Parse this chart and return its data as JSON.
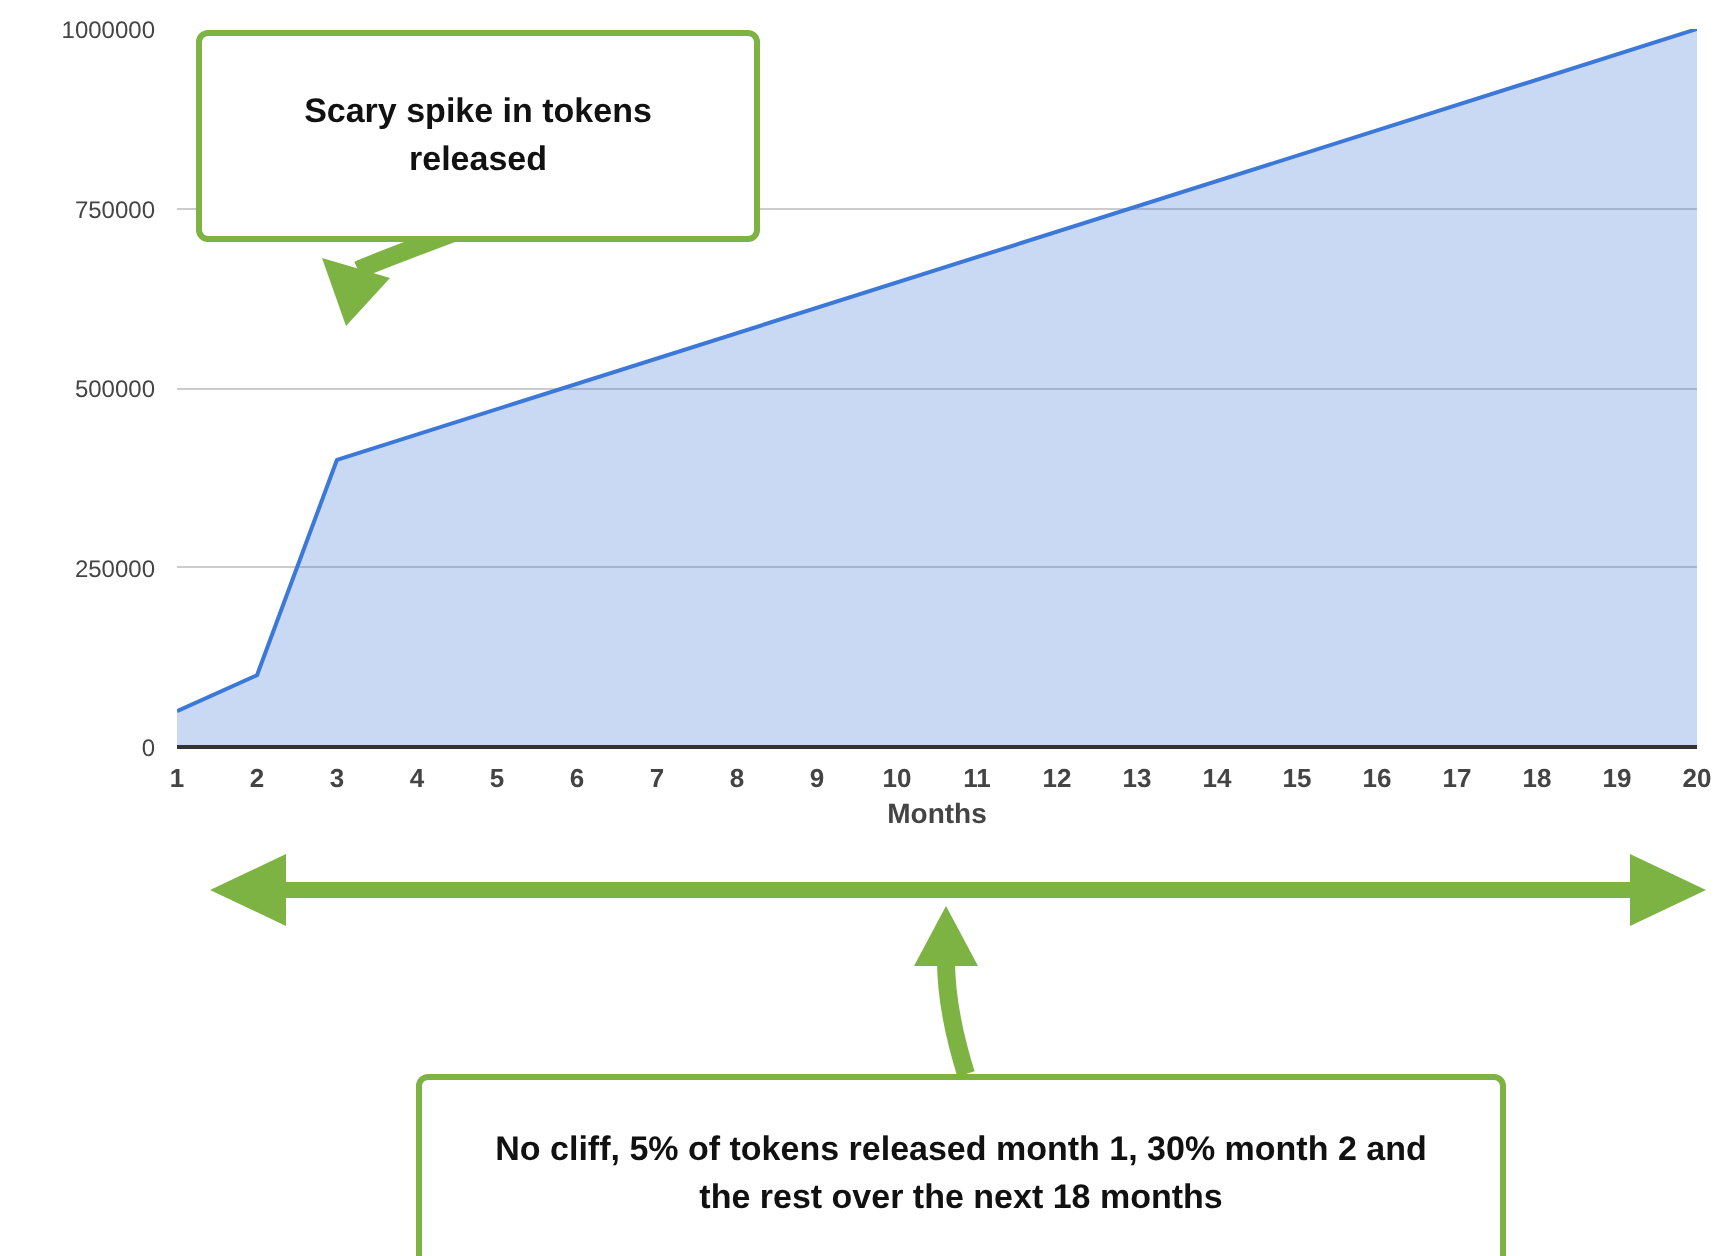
{
  "chart_data": {
    "type": "area",
    "xlabel": "Months",
    "x": [
      1,
      2,
      3,
      20
    ],
    "series": [
      {
        "color": "#3c78d8",
        "values": [
          50000,
          100000,
          400000,
          1000000
        ]
      }
    ],
    "xlim": [
      1,
      20
    ],
    "xticks": [
      1,
      2,
      3,
      4,
      5,
      6,
      7,
      8,
      9,
      10,
      11,
      12,
      13,
      14,
      15,
      16,
      17,
      18,
      19,
      20
    ],
    "ylim": [
      0,
      1000000
    ],
    "yticks": [
      0,
      250000,
      500000,
      750000,
      1000000
    ],
    "grid": "y",
    "annotations": [
      "Scary spike in tokens released",
      "No cliff, 5% of tokens released month 1, 30% month 2 and the rest over the next 18 months"
    ]
  }
}
